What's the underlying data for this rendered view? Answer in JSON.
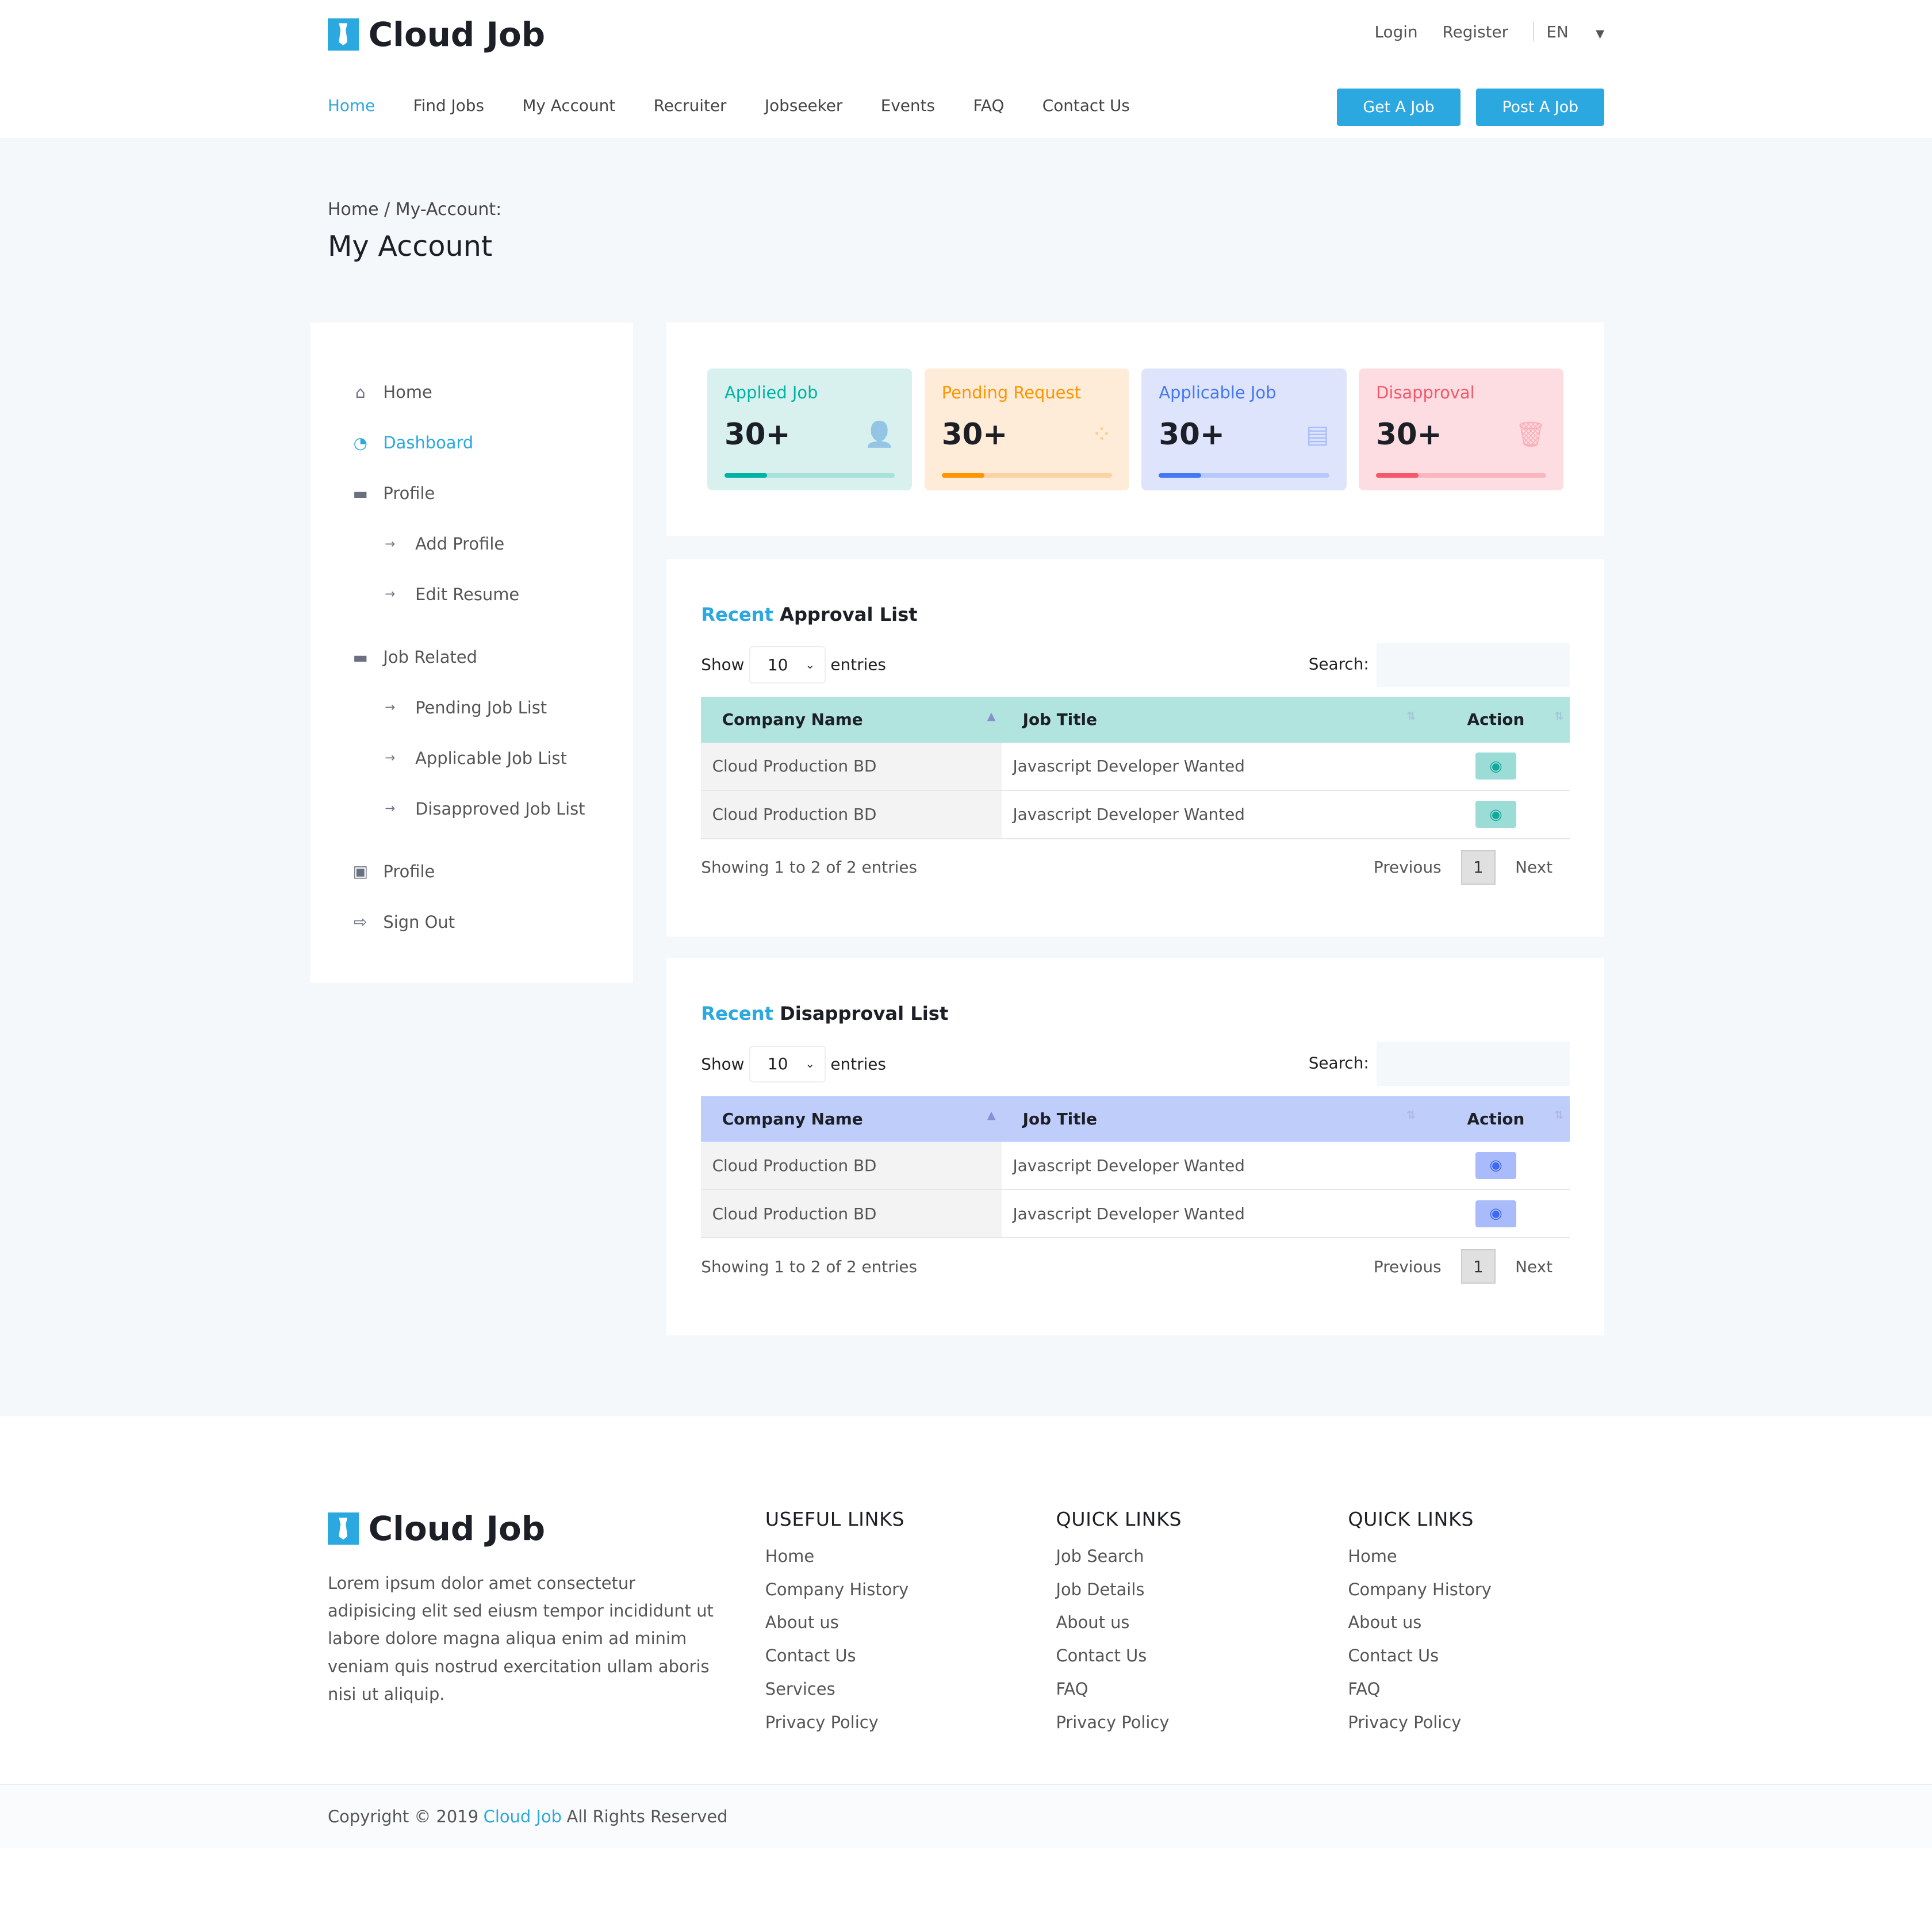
{
  "brand": "Cloud Job",
  "top": {
    "login": "Login",
    "register": "Register",
    "lang": "EN"
  },
  "nav": [
    "Home",
    "Find Jobs",
    "My Account",
    "Recruiter",
    "Jobseeker",
    "Events",
    "FAQ",
    "Contact Us"
  ],
  "buttons": {
    "get": "Get A Job",
    "post": "Post A Job"
  },
  "page": {
    "breadcrumb": "Home / My-Account:",
    "title": "My Account"
  },
  "sidebar": {
    "items": [
      {
        "label": "Home",
        "icon": "home-icon"
      },
      {
        "label": "Dashboard",
        "icon": "dashboard-icon"
      },
      {
        "label": "Profile",
        "icon": "briefcase-icon"
      },
      {
        "label": "Add Profile",
        "icon": "arrow-right-icon"
      },
      {
        "label": "Edit Resume",
        "icon": "arrow-right-icon"
      },
      {
        "label": "Job Related",
        "icon": "briefcase-icon"
      },
      {
        "label": "Pending Job List",
        "icon": "arrow-right-icon"
      },
      {
        "label": "Applicable Job List",
        "icon": "arrow-right-icon"
      },
      {
        "label": "Disapproved Job List",
        "icon": "arrow-right-icon"
      },
      {
        "label": "Profile",
        "icon": "id-card-icon"
      },
      {
        "label": "Sign Out",
        "icon": "sign-out-icon"
      }
    ]
  },
  "stats": [
    {
      "label": "Applied Job",
      "value": "30+",
      "progress": 25,
      "color": "#00b3a4",
      "bg": "#d9f1ee",
      "track": "#a8e0da"
    },
    {
      "label": "Pending Request",
      "value": "30+",
      "progress": 25,
      "color": "#ff9500",
      "bg": "#feebd8",
      "track": "#fdd3a6"
    },
    {
      "label": "Applicable Job",
      "value": "30+",
      "progress": 25,
      "color": "#4478f5",
      "bg": "#dfe4fd",
      "track": "#b8c8fb"
    },
    {
      "label": "Disapproval",
      "value": "30+",
      "progress": 25,
      "color": "#f5586a",
      "bg": "#fddde2",
      "track": "#f8b7c0"
    }
  ],
  "tables": [
    {
      "title_accent": "Recent",
      "title": "Approval List",
      "show": "Show",
      "entries_value": "10",
      "entries": "entries",
      "search": "Search:",
      "columns": [
        "Company Name",
        "Job Title",
        "Action"
      ],
      "rows": [
        [
          "Cloud Production BD",
          "Javascript Developer Wanted"
        ],
        [
          "Cloud Production BD",
          "Javascript Developer Wanted"
        ]
      ],
      "info": "Showing 1 to 2 of 2 entries",
      "prev": "Previous",
      "page": "1",
      "next": "Next",
      "header_color": "#b2e4df",
      "btn_color": "#9cdcd6",
      "eye_color": "#14a89a"
    },
    {
      "title_accent": "Recent",
      "title": "Disapproval List",
      "show": "Show",
      "entries_value": "10",
      "entries": "entries",
      "search": "Search:",
      "columns": [
        "Company Name",
        "Job Title",
        "Action"
      ],
      "rows": [
        [
          "Cloud Production BD",
          "Javascript Developer Wanted"
        ],
        [
          "Cloud Production BD",
          "Javascript Developer Wanted"
        ]
      ],
      "info": "Showing 1 to 2 of 2 entries",
      "prev": "Previous",
      "page": "1",
      "next": "Next",
      "header_color": "#bfcdfb",
      "btn_color": "#a9bbfa",
      "eye_color": "#3f6af0"
    }
  ],
  "footer": {
    "desc": "Lorem ipsum dolor amet consectetur adipisicing elit sed eiusm tempor incididunt ut labore dolore magna aliqua enim ad minim veniam quis nostrud exercitation ullam aboris nisi ut aliquip.",
    "cols": [
      {
        "title": "USEFUL LINKS",
        "links": [
          "Home",
          "Company History",
          "About us",
          "Contact Us",
          "Services",
          "Privacy Policy"
        ]
      },
      {
        "title": "QUICK LINKS",
        "links": [
          "Job Search",
          "Job Details",
          "About us",
          "Contact Us",
          "FAQ",
          "Privacy Policy"
        ]
      },
      {
        "title": "QUICK LINKS",
        "links": [
          "Home",
          "Company History",
          "About us",
          "Contact Us",
          "FAQ",
          "Privacy Policy"
        ]
      }
    ],
    "copy_pre": "Copyright © 2019",
    "copy_brand": "Cloud Job",
    "copy_post": "All Rights Reserved"
  }
}
